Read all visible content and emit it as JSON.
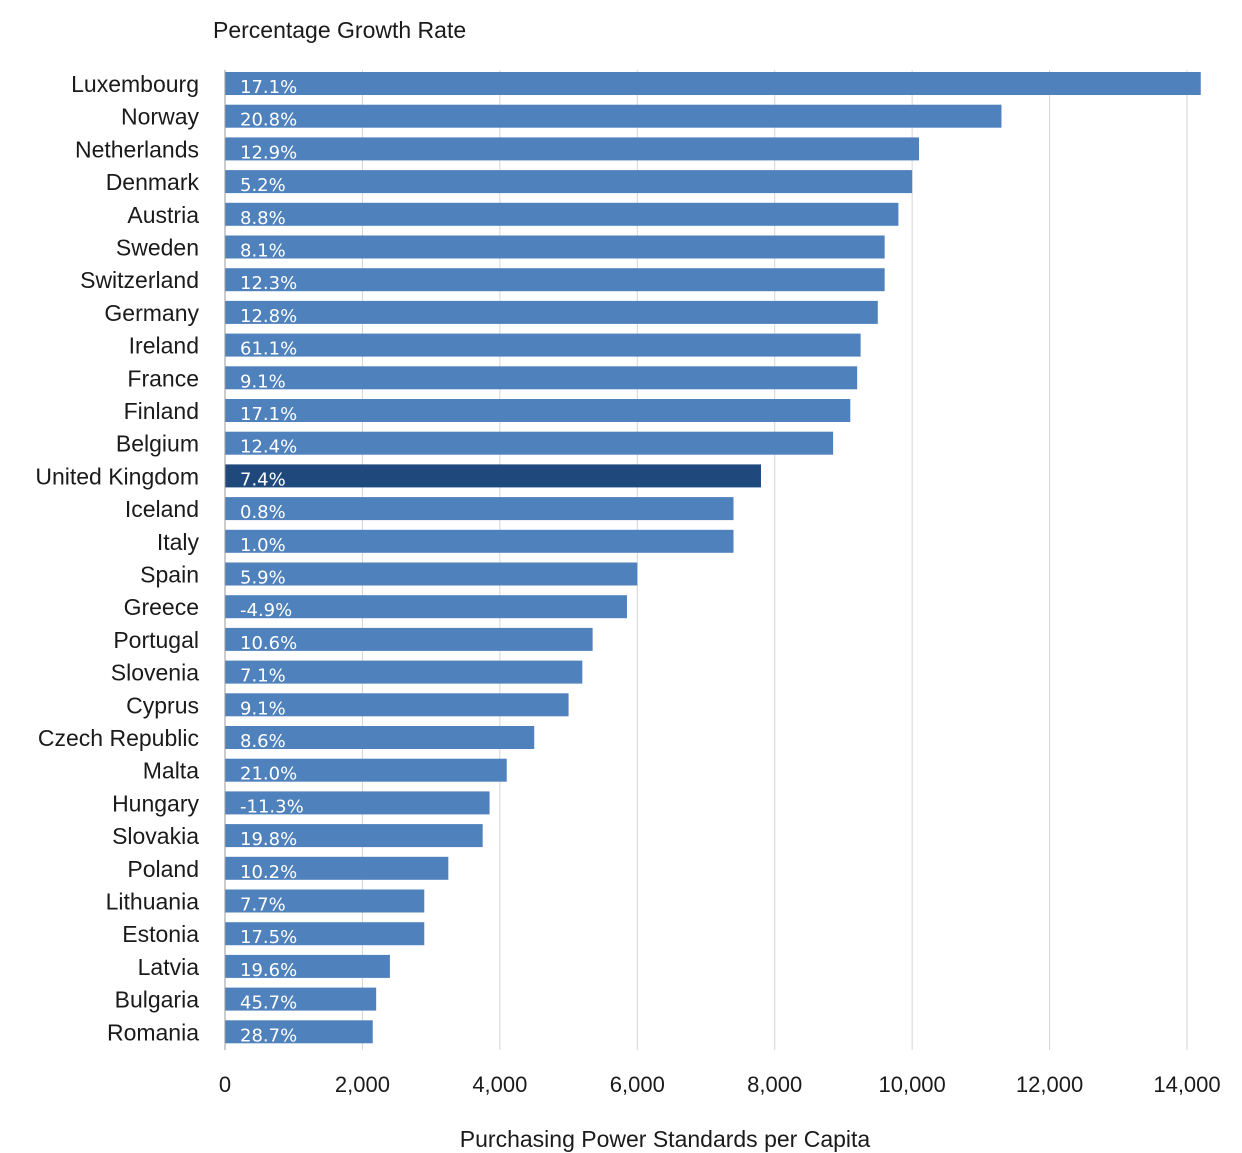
{
  "chart_data": {
    "type": "bar",
    "orientation": "horizontal",
    "title": "Percentage Growth Rate",
    "xlabel": "Purchasing Power Standards per Capita",
    "ylabel": "",
    "xlim": [
      0,
      14000
    ],
    "x_ticks": [
      "0",
      "2,000",
      "4,000",
      "6,000",
      "8,000",
      "10,000",
      "12,000",
      "14,000"
    ],
    "x_tick_values": [
      0,
      2000,
      4000,
      6000,
      8000,
      10000,
      12000,
      14000
    ],
    "grid": true,
    "bar_color": "#4f81bd",
    "highlight_color": "#1f497d",
    "highlight_category": "United Kingdom",
    "categories": [
      "Luxembourg",
      "Norway",
      "Netherlands",
      "Denmark",
      "Austria",
      "Sweden",
      "Switzerland",
      "Germany",
      "Ireland",
      "France",
      "Finland",
      "Belgium",
      "United Kingdom",
      "Iceland",
      "Italy",
      "Spain",
      "Greece",
      "Portugal",
      "Slovenia",
      "Cyprus",
      "Czech Republic",
      "Malta",
      "Hungary",
      "Slovakia",
      "Poland",
      "Lithuania",
      "Estonia",
      "Latvia",
      "Bulgaria",
      "Romania"
    ],
    "values": [
      14200,
      11300,
      10100,
      10000,
      9800,
      9600,
      9600,
      9500,
      9250,
      9200,
      9100,
      8850,
      7800,
      7400,
      7400,
      6000,
      5850,
      5350,
      5200,
      5000,
      4500,
      4100,
      3850,
      3750,
      3250,
      2900,
      2900,
      2400,
      2200,
      2150
    ],
    "bar_labels": [
      "17.1%",
      "20.8%",
      "12.9%",
      "5.2%",
      "8.8%",
      "8.1%",
      "12.3%",
      "12.8%",
      "61.1%",
      "9.1%",
      "17.1%",
      "12.4%",
      "7.4%",
      "0.8%",
      "1.0%",
      "5.9%",
      "-4.9%",
      "10.6%",
      "7.1%",
      "9.1%",
      "8.6%",
      "21.0%",
      "-11.3%",
      "19.8%",
      "10.2%",
      "7.7%",
      "17.5%",
      "19.6%",
      "45.7%",
      "28.7%"
    ]
  }
}
